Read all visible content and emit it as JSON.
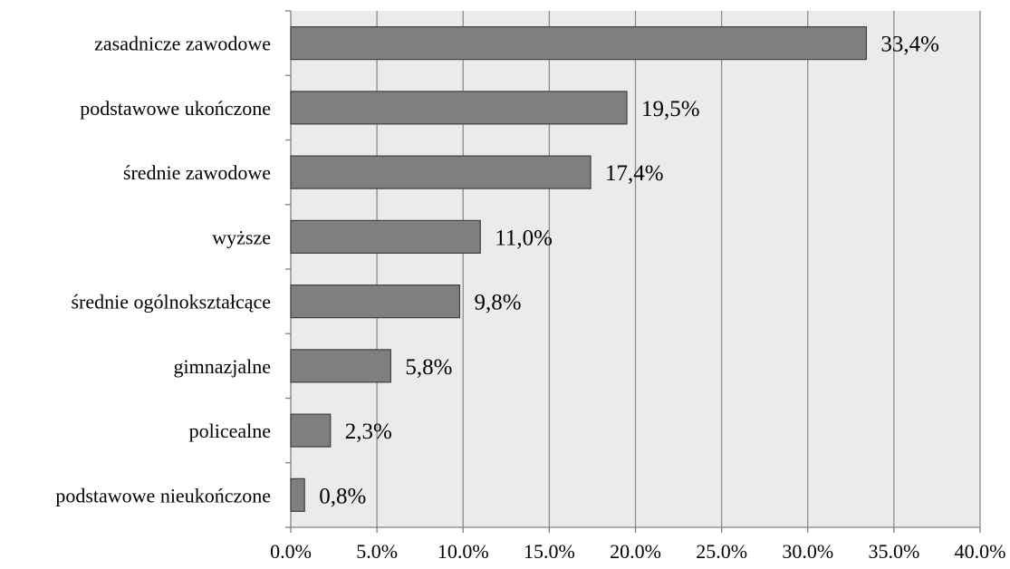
{
  "chart_data": {
    "type": "bar",
    "orientation": "horizontal",
    "categories": [
      "zasadnicze zawodowe",
      "podstawowe ukończone",
      "średnie zawodowe",
      "wyższe",
      "średnie ogólnokształcące",
      "gimnazjalne",
      "policealne",
      "podstawowe nieukończone"
    ],
    "values": [
      33.4,
      19.5,
      17.4,
      11.0,
      9.8,
      5.8,
      2.3,
      0.8
    ],
    "data_labels": [
      "33,4%",
      "19,5%",
      "17,4%",
      "11,0%",
      "9,8%",
      "5,8%",
      "2,3%",
      "0,8%"
    ],
    "xlim": [
      0,
      40
    ],
    "xticks": [
      0,
      5,
      10,
      15,
      20,
      25,
      30,
      35,
      40
    ],
    "xtick_labels": [
      "0.0%",
      "5.0%",
      "10.0%",
      "15.0%",
      "20.0%",
      "25.0%",
      "30.0%",
      "35.0%",
      "40.0%"
    ],
    "grid": "vertical",
    "legend": "none",
    "colors": {
      "bar_fill": "#7f7f7f",
      "bar_stroke": "#404040",
      "plot_background": "#ebebeb",
      "gridline": "#8c8c8c",
      "axis": "#7f7f7f"
    }
  }
}
